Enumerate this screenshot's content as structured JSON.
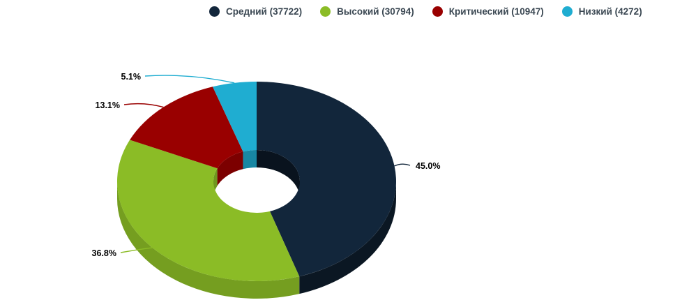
{
  "page": {
    "background": "#ffffff"
  },
  "legend": {
    "position": "top",
    "items": [
      {
        "label": "Средний (37722)",
        "color": "#12263B"
      },
      {
        "label": "Высокий (30794)",
        "color": "#8BBC26"
      },
      {
        "label": "Критический (10947)",
        "color": "#990000"
      },
      {
        "label": "Низкий (4272)",
        "color": "#1FADD1"
      }
    ]
  },
  "chart_data": {
    "type": "pie",
    "variant": "3d-donut",
    "title": "",
    "legend_position": "top",
    "categories": [
      "Средний",
      "Высокий",
      "Критический",
      "Низкий"
    ],
    "values": [
      37722,
      30794,
      10947,
      4272
    ],
    "percent_labels": [
      "45.0%",
      "36.8%",
      "13.1%",
      "5.1%"
    ],
    "colors": [
      "#12263B",
      "#8BBC26",
      "#990000",
      "#1FADD1"
    ],
    "start_angle": "top",
    "direction": "clockwise",
    "donut_hole": true,
    "label_color": "#000000",
    "legend_text_color": "#3A4752"
  }
}
